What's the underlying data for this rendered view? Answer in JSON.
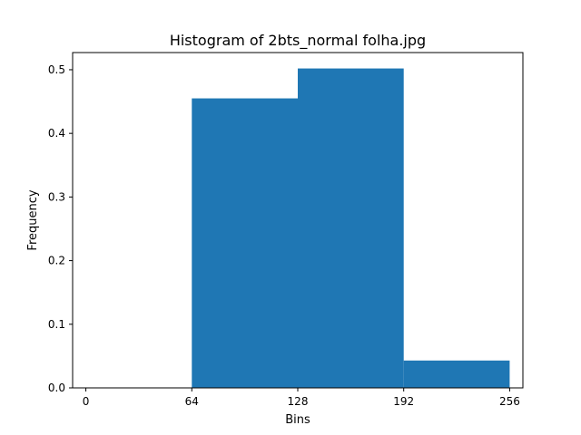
{
  "chart_data": {
    "type": "bar",
    "title": "Histogram of 2bts_normal folha.jpg",
    "xlabel": "Bins",
    "ylabel": "Frequency",
    "bins": [
      {
        "start": 0,
        "end": 64,
        "value": 0.0
      },
      {
        "start": 64,
        "end": 128,
        "value": 0.455
      },
      {
        "start": 128,
        "end": 192,
        "value": 0.502
      },
      {
        "start": 192,
        "end": 256,
        "value": 0.043
      }
    ],
    "xticks": [
      0,
      64,
      128,
      192,
      256
    ],
    "xtick_labels": [
      "0",
      "64",
      "128",
      "192",
      "256"
    ],
    "yticks": [
      0.0,
      0.1,
      0.2,
      0.3,
      0.4,
      0.5
    ],
    "ytick_labels": [
      "0.0",
      "0.1",
      "0.2",
      "0.3",
      "0.4",
      "0.5"
    ],
    "xlim": [
      -8,
      264
    ],
    "ylim": [
      0,
      0.527
    ],
    "grid": false,
    "bar_color": "#1f77b4"
  }
}
